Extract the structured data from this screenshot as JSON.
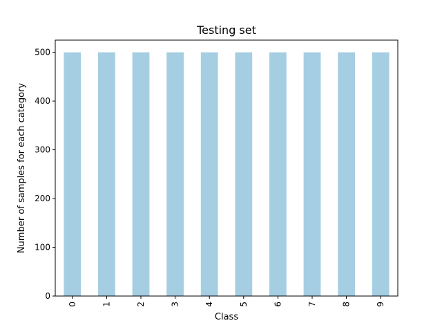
{
  "chart_data": {
    "type": "bar",
    "title": "Testing set",
    "xlabel": "Class",
    "ylabel": "Number of samples for each category",
    "categories": [
      "0",
      "1",
      "2",
      "3",
      "4",
      "5",
      "6",
      "7",
      "8",
      "9"
    ],
    "values": [
      500,
      500,
      500,
      500,
      500,
      500,
      500,
      500,
      500,
      500
    ],
    "ylim": [
      0,
      525
    ],
    "yticks": [
      "0",
      "100",
      "200",
      "300",
      "400",
      "500"
    ],
    "grid": false,
    "legend": "none",
    "bar_color": "#a6cee3",
    "x_tick_rotation": "vertical"
  }
}
